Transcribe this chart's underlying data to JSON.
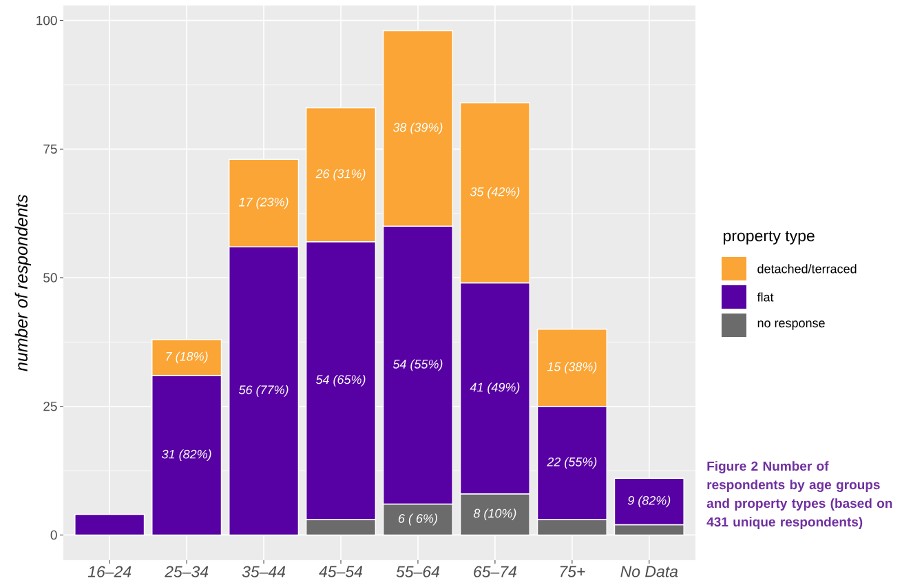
{
  "chart_data": {
    "type": "bar",
    "stacked": true,
    "ylabel": "number of respondents",
    "legend_title": "property type",
    "legend": "right",
    "grid": true,
    "categories": [
      "16–24",
      "25–34",
      "35–44",
      "45–54",
      "55–64",
      "65–74",
      "75+",
      "No Data"
    ],
    "series": [
      {
        "name": "no response",
        "color": "#6b6b6b",
        "values": [
          null,
          null,
          null,
          3,
          6,
          8,
          3,
          2
        ],
        "value_labels": [
          null,
          null,
          null,
          null,
          "6 ( 6%)",
          "8 (10%)",
          null,
          null
        ]
      },
      {
        "name": "flat",
        "color": "#5700a3",
        "values": [
          4,
          31,
          56,
          54,
          54,
          41,
          22,
          9
        ],
        "value_labels": [
          null,
          "31 (82%)",
          "56 (77%)",
          "54 (65%)",
          "54 (55%)",
          "41 (49%)",
          "22 (55%)",
          "9 (82%)"
        ]
      },
      {
        "name": "detached/terraced",
        "color": "#faa535",
        "values": [
          null,
          7,
          17,
          26,
          38,
          35,
          15,
          null
        ],
        "value_labels": [
          null,
          "7 (18%)",
          "17 (23%)",
          "26 (31%)",
          "38 (39%)",
          "35 (42%)",
          "15 (38%)",
          null
        ]
      }
    ],
    "ylim": [
      -4.9,
      102.9
    ],
    "yticks": [
      0,
      25,
      50,
      75,
      100
    ],
    "annotations": [
      "Figure 2 Number of respondents by age groups and property types (based on 431 unique respondents)"
    ]
  }
}
